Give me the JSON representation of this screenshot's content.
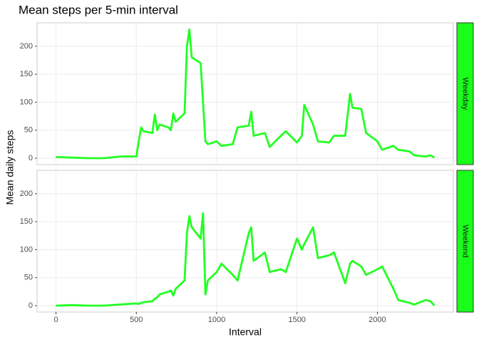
{
  "chart_data": {
    "type": "line",
    "title": "Mean steps per 5-min interval",
    "x_label": "Interval",
    "y_label": "Mean daily steps",
    "facet": true,
    "grid": true,
    "xlim": [
      -117.75,
      2472.75
    ],
    "xticks": [
      0,
      500,
      1000,
      1500,
      2000
    ],
    "ylim": [
      -11.5,
      241.9
    ],
    "yticks": [
      0,
      50,
      100,
      150,
      200
    ],
    "x": [
      0,
      100,
      200,
      300,
      400,
      500,
      515,
      530,
      545,
      600,
      615,
      630,
      645,
      700,
      715,
      730,
      745,
      800,
      815,
      830,
      845,
      900,
      915,
      930,
      945,
      1000,
      1030,
      1100,
      1130,
      1200,
      1215,
      1230,
      1300,
      1330,
      1400,
      1430,
      1500,
      1530,
      1545,
      1600,
      1630,
      1700,
      1730,
      1800,
      1830,
      1845,
      1900,
      1930,
      2000,
      2030,
      2100,
      2130,
      2200,
      2230,
      2300,
      2330,
      2355
    ],
    "series": [
      {
        "name": "Weekday",
        "color": "#22ff22",
        "strip_color": "#1aff1a",
        "values": [
          2,
          1,
          0,
          0,
          3,
          3,
          30,
          55,
          48,
          45,
          78,
          50,
          60,
          55,
          50,
          80,
          65,
          80,
          200,
          230,
          180,
          170,
          100,
          30,
          25,
          30,
          22,
          25,
          55,
          58,
          83,
          40,
          45,
          20,
          40,
          48,
          28,
          40,
          95,
          60,
          30,
          28,
          40,
          40,
          115,
          90,
          88,
          45,
          30,
          15,
          22,
          15,
          12,
          5,
          3,
          5,
          1
        ]
      },
      {
        "name": "Weekend",
        "color": "#22ff22",
        "strip_color": "#1aff1a",
        "values": [
          0,
          1,
          0,
          0,
          2,
          4,
          3,
          5,
          6,
          8,
          12,
          15,
          20,
          25,
          27,
          18,
          30,
          45,
          130,
          160,
          140,
          120,
          165,
          20,
          45,
          60,
          75,
          55,
          45,
          130,
          140,
          80,
          95,
          60,
          65,
          60,
          120,
          100,
          110,
          140,
          85,
          90,
          95,
          40,
          75,
          80,
          70,
          55,
          65,
          70,
          30,
          10,
          5,
          2,
          10,
          8,
          0
        ]
      }
    ]
  }
}
